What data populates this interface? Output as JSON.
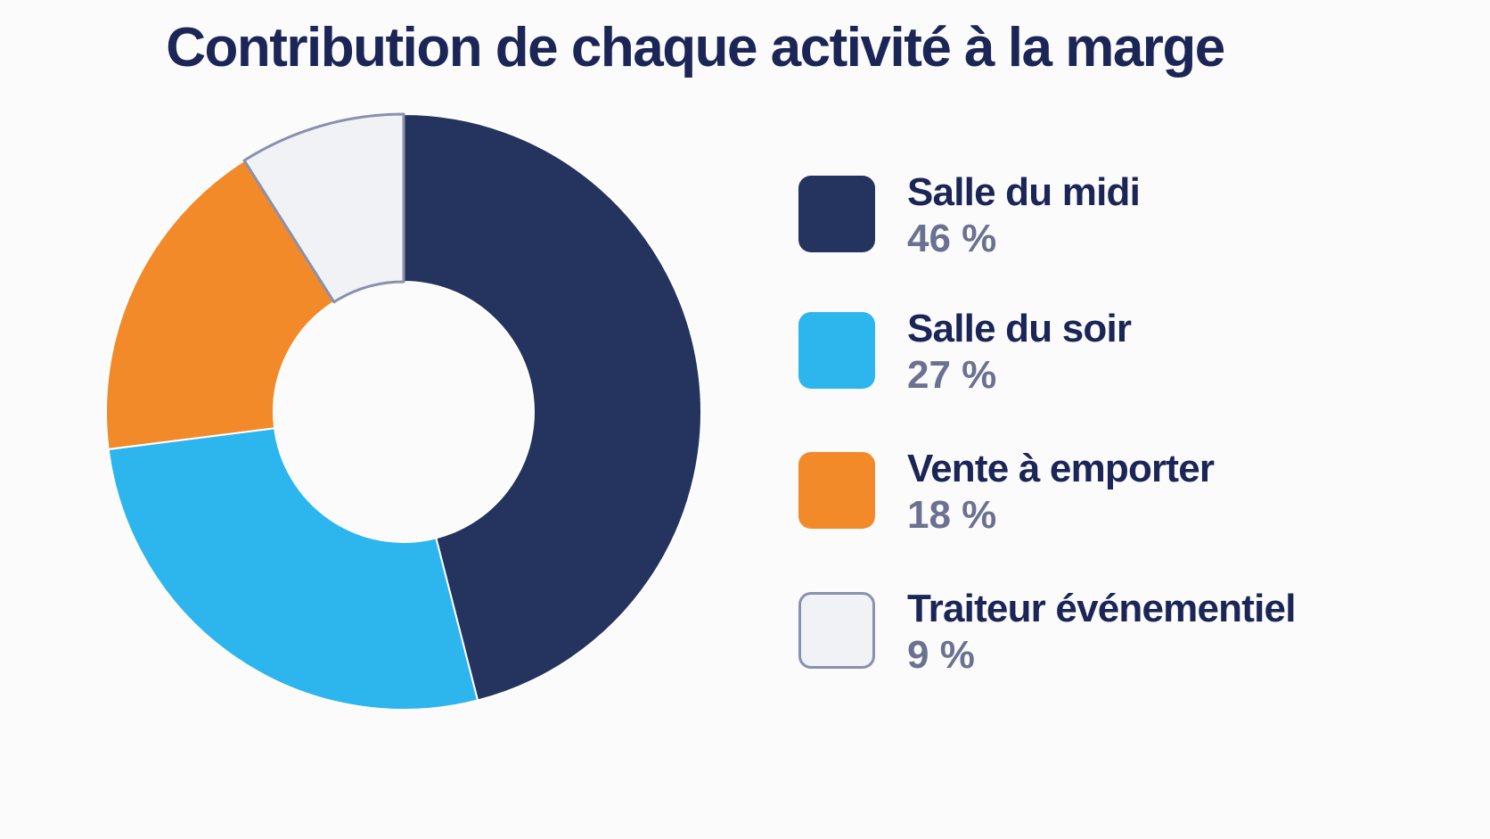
{
  "chart_data": {
    "type": "pie",
    "variant": "donut",
    "title": "Contribution de chaque activité à la marge",
    "categories": [
      "Salle du midi",
      "Salle du soir",
      "Vente à emporter",
      "Traiteur événementiel"
    ],
    "values": [
      46,
      27,
      18,
      9
    ],
    "value_labels": [
      "46 %",
      "27 %",
      "18 %",
      "9 %"
    ],
    "colors": [
      "#25335f",
      "#2db6ee",
      "#f38a2a",
      "#f1f2f5"
    ],
    "outline_color": "#8a90ad",
    "legend_position": "right"
  }
}
